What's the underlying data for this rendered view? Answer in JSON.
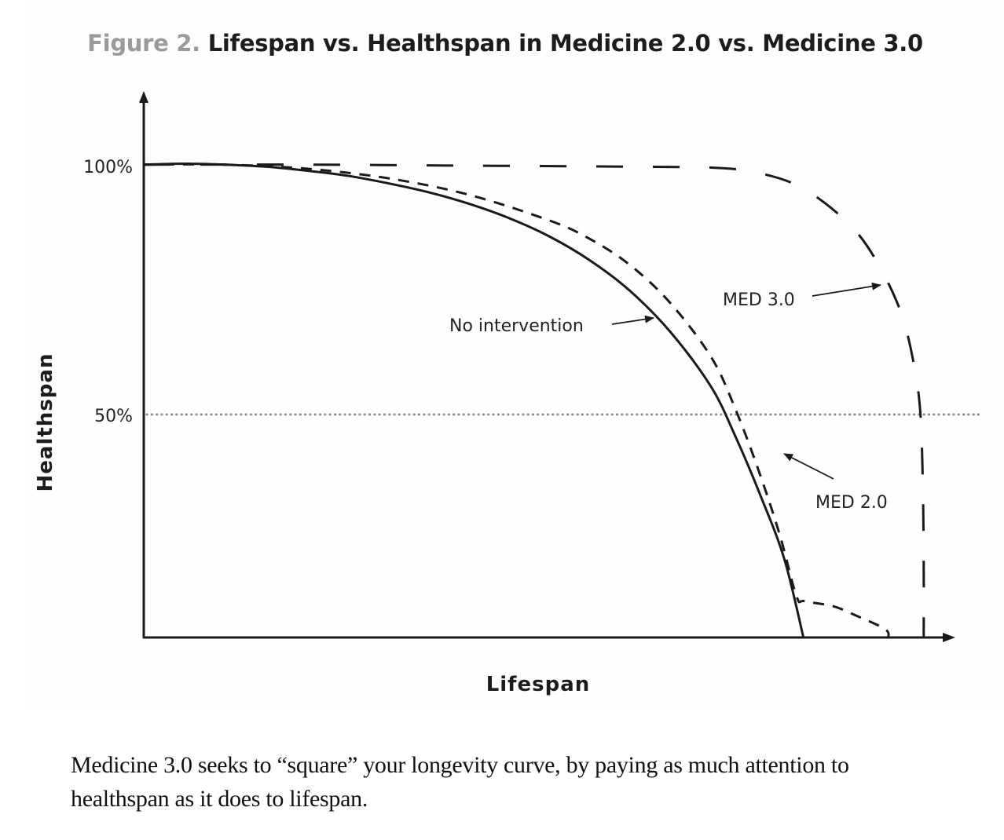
{
  "figure": {
    "prefix": "Figure 2.",
    "title": "Lifespan vs. Healthspan in Medicine 2.0 vs. Medicine 3.0"
  },
  "caption": "Medicine 3.0 seeks to “square” your longevity curve, by paying as much attention to healthspan as it does to lifespan.",
  "chart_data": {
    "type": "line",
    "title": "Lifespan vs. Healthspan in Medicine 2.0 vs. Medicine 3.0",
    "xlabel": "Lifespan",
    "ylabel": "Healthspan",
    "y_ticks": [
      {
        "value": 100,
        "label": "100%"
      },
      {
        "value": 50,
        "label": "50%"
      }
    ],
    "xlim": [
      0,
      100
    ],
    "ylim": [
      5,
      115
    ],
    "reference_line": {
      "y": 50,
      "style": "dotted",
      "color": "#888888"
    },
    "grid": false,
    "legend": "none",
    "series": [
      {
        "name": "No intervention",
        "style": "solid",
        "points": [
          [
            0,
            100.2
          ],
          [
            5,
            100.4
          ],
          [
            10,
            100.2
          ],
          [
            15,
            99.8
          ],
          [
            20,
            99.0
          ],
          [
            25,
            98.0
          ],
          [
            30,
            96.5
          ],
          [
            35,
            94.7
          ],
          [
            40,
            92.4
          ],
          [
            45,
            89.5
          ],
          [
            50,
            85.8
          ],
          [
            55,
            81.0
          ],
          [
            60,
            74.8
          ],
          [
            65,
            66.5
          ],
          [
            70,
            55.5
          ],
          [
            73,
            45.5
          ],
          [
            76,
            34
          ],
          [
            79,
            21
          ],
          [
            81.4,
            5
          ]
        ]
      },
      {
        "name": "MED 2.0",
        "style": "dashed",
        "points": [
          [
            0,
            100.2
          ],
          [
            10,
            100.2
          ],
          [
            20,
            99.4
          ],
          [
            30,
            97.5
          ],
          [
            40,
            94.2
          ],
          [
            50,
            89
          ],
          [
            55,
            85.3
          ],
          [
            60,
            80
          ],
          [
            65,
            72.3
          ],
          [
            70,
            61.5
          ],
          [
            73,
            51
          ],
          [
            76,
            38
          ],
          [
            78.5,
            25.5
          ],
          [
            80.5,
            13.5
          ],
          [
            81.5,
            12.5
          ],
          [
            85,
            11.5
          ],
          [
            88,
            9.5
          ],
          [
            91.5,
            6.8
          ],
          [
            91.8,
            5
          ]
        ]
      },
      {
        "name": "MED 3.0",
        "style": "dashed-long",
        "points": [
          [
            0,
            100.2
          ],
          [
            20,
            100.2
          ],
          [
            40,
            100
          ],
          [
            60,
            99.8
          ],
          [
            70,
            99.6
          ],
          [
            75,
            98.8
          ],
          [
            80,
            96.5
          ],
          [
            84,
            92.5
          ],
          [
            88,
            86.5
          ],
          [
            91,
            79
          ],
          [
            93.5,
            70
          ],
          [
            95,
            60
          ],
          [
            95.8,
            50
          ],
          [
            96.1,
            35
          ],
          [
            96.2,
            20
          ],
          [
            96.2,
            5
          ]
        ]
      }
    ],
    "annotations": [
      {
        "text": "No intervention",
        "points_to": "No intervention"
      },
      {
        "text": "MED 3.0",
        "points_to": "MED 3.0"
      },
      {
        "text": "MED 2.0",
        "points_to": "MED 2.0"
      }
    ]
  }
}
